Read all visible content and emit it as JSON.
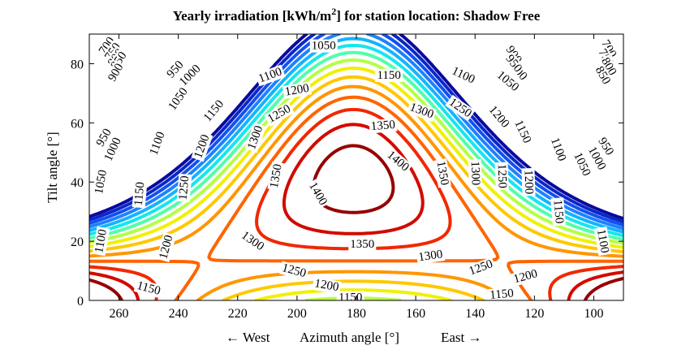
{
  "chart_data": {
    "type": "contour",
    "title_main": "Yearly irradiation [kWh/m",
    "title_sup": "2",
    "title_rest": "] for station location: Shadow Free",
    "xlabel": "Azimuth angle [°]",
    "xlabel_left": "← West",
    "xlabel_right": "East →",
    "ylabel": "Tilt angle [°]",
    "xlim": [
      270,
      90
    ],
    "ylim": [
      0,
      90
    ],
    "x_ticks": [
      260,
      240,
      220,
      200,
      180,
      160,
      140,
      120,
      100
    ],
    "y_ticks": [
      0,
      20,
      40,
      60,
      80
    ],
    "contour_model": {
      "peak_value": 1430,
      "peak_azimuth": 181,
      "peak_tilt": 41,
      "quadratic_coefficients": {
        "azimuth_sq": 0.1,
        "tilt_sq": 0.235,
        "product_w": 0.0039,
        "product_wt": 4.6e-05
      }
    },
    "levels": [
      {
        "value": 700,
        "color": "#0a0a9e"
      },
      {
        "value": 750,
        "color": "#0a28c8"
      },
      {
        "value": 800,
        "color": "#1450f0"
      },
      {
        "value": 850,
        "color": "#1e82ff"
      },
      {
        "value": 900,
        "color": "#14b4ff"
      },
      {
        "value": 950,
        "color": "#14e6f0"
      },
      {
        "value": 1000,
        "color": "#50ffaa"
      },
      {
        "value": 1050,
        "color": "#b4ff46"
      },
      {
        "value": 1100,
        "color": "#f0f000"
      },
      {
        "value": 1150,
        "color": "#ffc800"
      },
      {
        "value": 1200,
        "color": "#ff9600"
      },
      {
        "value": 1250,
        "color": "#ff6400"
      },
      {
        "value": 1300,
        "color": "#f02800"
      },
      {
        "value": 1350,
        "color": "#d20a00"
      },
      {
        "value": 1400,
        "color": "#960000"
      }
    ],
    "contour_labels": [
      {
        "text": "1050",
        "az": 191,
        "tilt": 86,
        "rot": 0
      },
      {
        "text": "950",
        "az": 241,
        "tilt": 78,
        "rot": -48
      },
      {
        "text": "1000",
        "az": 236,
        "tilt": 76,
        "rot": -45
      },
      {
        "text": "1100",
        "az": 209,
        "tilt": 76,
        "rot": -20
      },
      {
        "text": "1150",
        "az": 169,
        "tilt": 76,
        "rot": 0
      },
      {
        "text": "1100",
        "az": 144,
        "tilt": 76,
        "rot": 25
      },
      {
        "text": "1050",
        "az": 129,
        "tilt": 74,
        "rot": 40
      },
      {
        "text": "1000",
        "az": 126,
        "tilt": 78,
        "rot": 48
      },
      {
        "text": "900",
        "az": 127,
        "tilt": 83,
        "rot": 55
      },
      {
        "text": "950",
        "az": 127,
        "tilt": 80,
        "rot": 52
      },
      {
        "text": "1200",
        "az": 200,
        "tilt": 71,
        "rot": -10
      },
      {
        "text": "1050",
        "az": 240,
        "tilt": 68,
        "rot": -55
      },
      {
        "text": "1150",
        "az": 228,
        "tilt": 64,
        "rot": -50
      },
      {
        "text": "1250",
        "az": 206,
        "tilt": 63,
        "rot": -30
      },
      {
        "text": "1300",
        "az": 158,
        "tilt": 64,
        "rot": 20
      },
      {
        "text": "1250",
        "az": 145,
        "tilt": 65,
        "rot": 35
      },
      {
        "text": "1200",
        "az": 132,
        "tilt": 62,
        "rot": 50
      },
      {
        "text": "1150",
        "az": 124,
        "tilt": 57,
        "rot": 65
      },
      {
        "text": "1350",
        "az": 171,
        "tilt": 59,
        "rot": -5
      },
      {
        "text": "1400",
        "az": 166,
        "tilt": 47,
        "rot": 40
      },
      {
        "text": "1300",
        "az": 214,
        "tilt": 55,
        "rot": -70
      },
      {
        "text": "1200",
        "az": 232,
        "tilt": 52,
        "rot": -70
      },
      {
        "text": "1100",
        "az": 247,
        "tilt": 53,
        "rot": -70
      },
      {
        "text": "950",
        "az": 265,
        "tilt": 55,
        "rot": -60
      },
      {
        "text": "1000",
        "az": 262,
        "tilt": 51,
        "rot": -65
      },
      {
        "text": "1100",
        "az": 112,
        "tilt": 51,
        "rot": 70
      },
      {
        "text": "1050",
        "az": 104,
        "tilt": 46,
        "rot": 65
      },
      {
        "text": "1000",
        "az": 99,
        "tilt": 48,
        "rot": 62
      },
      {
        "text": "950",
        "az": 96,
        "tilt": 52,
        "rot": 58
      },
      {
        "text": "1350",
        "az": 207,
        "tilt": 42,
        "rot": -80
      },
      {
        "text": "1350",
        "az": 151,
        "tilt": 43,
        "rot": 80
      },
      {
        "text": "1300",
        "az": 140,
        "tilt": 43,
        "rot": 88
      },
      {
        "text": "1250",
        "az": 131,
        "tilt": 42,
        "rot": 88
      },
      {
        "text": "1200",
        "az": 122,
        "tilt": 40,
        "rot": 88
      },
      {
        "text": "1400",
        "az": 193,
        "tilt": 36,
        "rot": 60
      },
      {
        "text": "1250",
        "az": 238,
        "tilt": 38,
        "rot": -85
      },
      {
        "text": "1150",
        "az": 253,
        "tilt": 36,
        "rot": -85
      },
      {
        "text": "1050",
        "az": 266,
        "tilt": 40,
        "rot": -80
      },
      {
        "text": "1150",
        "az": 112,
        "tilt": 30,
        "rot": 85
      },
      {
        "text": "1100",
        "az": 97,
        "tilt": 20,
        "rot": 80
      },
      {
        "text": "1100",
        "az": 266,
        "tilt": 20,
        "rot": -80
      },
      {
        "text": "1300",
        "az": 215,
        "tilt": 20,
        "rot": 35
      },
      {
        "text": "1200",
        "az": 244,
        "tilt": 18,
        "rot": -75
      },
      {
        "text": "1350",
        "az": 178,
        "tilt": 19,
        "rot": 0
      },
      {
        "text": "1300",
        "az": 155,
        "tilt": 15,
        "rot": -8
      },
      {
        "text": "1250",
        "az": 201,
        "tilt": 10,
        "rot": 15
      },
      {
        "text": "1250",
        "az": 138,
        "tilt": 11,
        "rot": -20
      },
      {
        "text": "1200",
        "az": 190,
        "tilt": 5,
        "rot": 10
      },
      {
        "text": "1200",
        "az": 123,
        "tilt": 8,
        "rot": -15
      },
      {
        "text": "1150",
        "az": 250,
        "tilt": 4,
        "rot": 15
      },
      {
        "text": "1150",
        "az": 131,
        "tilt": 2,
        "rot": -5
      },
      {
        "text": "1150",
        "az": 182,
        "tilt": 1,
        "rot": 0
      },
      {
        "text": "700",
        "az": 264,
        "tilt": 86,
        "rot": -55
      },
      {
        "text": "750",
        "az": 262,
        "tilt": 84,
        "rot": -55
      },
      {
        "text": "800",
        "az": 261,
        "tilt": 82,
        "rot": -55
      },
      {
        "text": "850",
        "az": 260,
        "tilt": 81,
        "rot": -55
      },
      {
        "text": "900",
        "az": 261,
        "tilt": 77,
        "rot": -60
      },
      {
        "text": "700",
        "az": 95,
        "tilt": 85,
        "rot": 60
      },
      {
        "text": "750",
        "az": 96,
        "tilt": 82,
        "rot": 60
      },
      {
        "text": "800",
        "az": 95,
        "tilt": 79,
        "rot": 60
      },
      {
        "text": "850",
        "az": 97,
        "tilt": 76,
        "rot": 60
      }
    ]
  }
}
